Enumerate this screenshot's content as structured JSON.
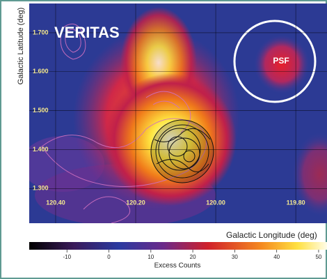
{
  "chart_data": {
    "type": "heatmap",
    "title": "VERITAS",
    "annotation": "PSF",
    "y_label": "Galactic Latitude (deg)",
    "x_label": "Galactic Longitude (deg)",
    "xlim": [
      120.466,
      119.722
    ],
    "ylim": [
      1.211,
      1.775
    ],
    "xticks": [
      {
        "value": 120.4,
        "label": "120.40"
      },
      {
        "value": 120.2,
        "label": "120.20"
      },
      {
        "value": 120.0,
        "label": "120.00"
      },
      {
        "value": 119.8,
        "label": "119.80"
      }
    ],
    "yticks": [
      {
        "value": 1.3,
        "label": "1.300"
      },
      {
        "value": 1.4,
        "label": "1.400"
      },
      {
        "value": 1.5,
        "label": "1.500"
      },
      {
        "value": 1.6,
        "label": "1.600"
      },
      {
        "value": 1.7,
        "label": "1.700"
      }
    ],
    "grid": true,
    "colorbar": {
      "label": "Excess Counts",
      "lim": [
        -19,
        52
      ],
      "ticks": [
        -10,
        0,
        10,
        20,
        30,
        40,
        50
      ]
    }
  }
}
